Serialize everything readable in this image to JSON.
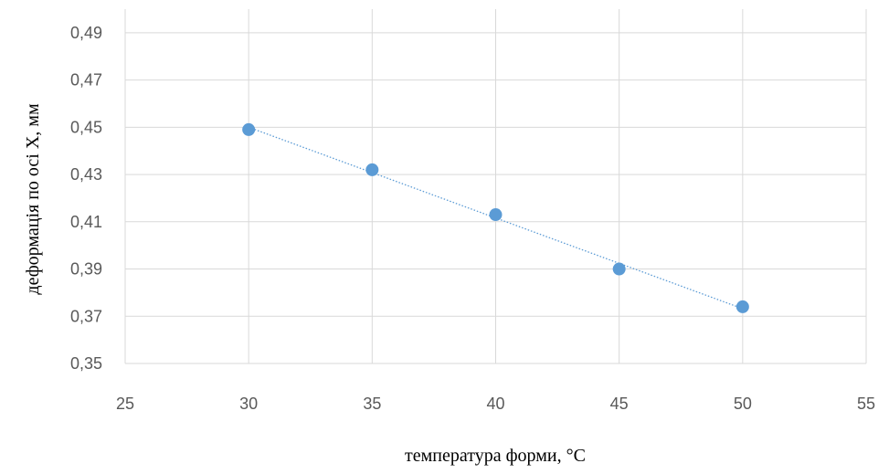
{
  "chart_data": {
    "type": "scatter",
    "xlabel": "температура форми, °C",
    "ylabel": "деформація по осі X, мм",
    "xlim": [
      25,
      55
    ],
    "ylim": [
      0.35,
      0.5
    ],
    "x_ticks": [
      "25",
      "30",
      "35",
      "40",
      "45",
      "50",
      "55"
    ],
    "y_ticks": [
      "0,35",
      "0,37",
      "0,39",
      "0,41",
      "0,43",
      "0,45",
      "0,47",
      "0,49"
    ],
    "points": [
      {
        "x": 30,
        "y": 0.449
      },
      {
        "x": 35,
        "y": 0.432
      },
      {
        "x": 40,
        "y": 0.413
      },
      {
        "x": 45,
        "y": 0.39
      },
      {
        "x": 50,
        "y": 0.374
      }
    ],
    "trendline": {
      "type": "linear",
      "style": "dotted"
    },
    "grid": true,
    "legend": "none",
    "colors": {
      "marker": "#5B9BD5",
      "trendline": "#5B9BD5",
      "grid": "#D9D9D9"
    }
  }
}
